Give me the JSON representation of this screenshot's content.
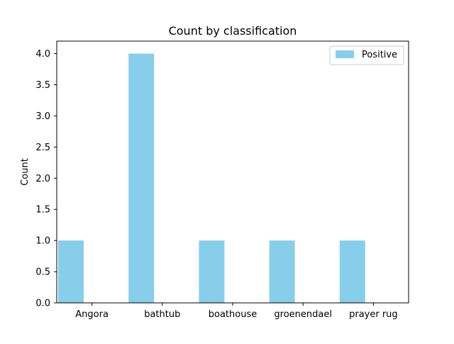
{
  "chart_data": {
    "type": "bar",
    "title": "Count by classification",
    "xlabel": "",
    "ylabel": "Count",
    "categories": [
      "Angora",
      "bathtub",
      "boathouse",
      "groenendael",
      "prayer rug"
    ],
    "series": [
      {
        "name": "Positive",
        "values": [
          1,
          4,
          1,
          1,
          1
        ],
        "color": "#87ceeb"
      }
    ],
    "ylim": [
      0,
      4.2
    ],
    "yticks": [
      "0.0",
      "0.5",
      "1.0",
      "1.5",
      "2.0",
      "2.5",
      "3.0",
      "3.5",
      "4.0"
    ],
    "legend_position": "top-right",
    "grid": false
  }
}
